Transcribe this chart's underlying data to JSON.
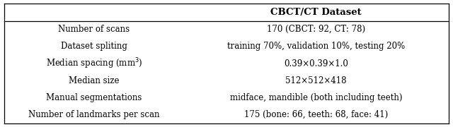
{
  "title": "CBCT/CT Dataset",
  "rows": [
    [
      "Number of scans",
      "170 (CBCT: 92, CT: 78)"
    ],
    [
      "Dataset spliting",
      "training 70%, validation 10%, testing 20%"
    ],
    [
      "Median spacing (mm$^3$)",
      "0.39×0.39×1.0"
    ],
    [
      "Median size",
      "512×512×418"
    ],
    [
      "Manual segmentations",
      "midface, mandible (both including teeth)"
    ],
    [
      "Number of landmarks per scan",
      "175 (bone: 66, teeth: 68, face: 41)"
    ]
  ],
  "col_split": 0.405,
  "background_color": "#ffffff",
  "font_size": 8.5,
  "title_font_size": 9.5,
  "line_color": "black",
  "line_width": 0.9
}
